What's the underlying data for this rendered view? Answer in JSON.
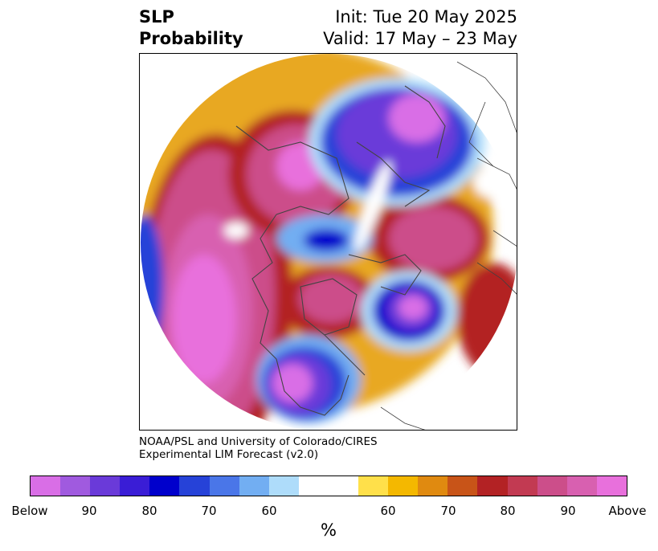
{
  "title": {
    "left_line1": "SLP",
    "left_line2": "Probability",
    "right_line1": "Init: Tue 20 May 2025",
    "right_line2": "Valid: 17 May – 23 May"
  },
  "credit": {
    "line1": "NOAA/PSL and University of Colorado/CIRES",
    "line2": "Experimental LIM Forecast (v2.0)"
  },
  "colorbar": {
    "colors": [
      "#d96ee6",
      "#a05adf",
      "#6a3ad9",
      "#3a1dd6",
      "#0000cc",
      "#2642d8",
      "#4a76e8",
      "#72aef2",
      "#aedcfa",
      "#ffffff",
      "#ffffff",
      "#ffe04a",
      "#f4b800",
      "#e08a10",
      "#c85418",
      "#b32224",
      "#c23a52",
      "#cc4e8a",
      "#d860b0",
      "#e870dc"
    ],
    "labels": [
      "Below",
      "90",
      "80",
      "70",
      "60",
      "60",
      "70",
      "80",
      "90",
      "Above"
    ],
    "unit": "%"
  },
  "map": {
    "projection": "north-polar-stereographic",
    "features": [
      "coastlines",
      "country-borders",
      "state-borders"
    ]
  }
}
